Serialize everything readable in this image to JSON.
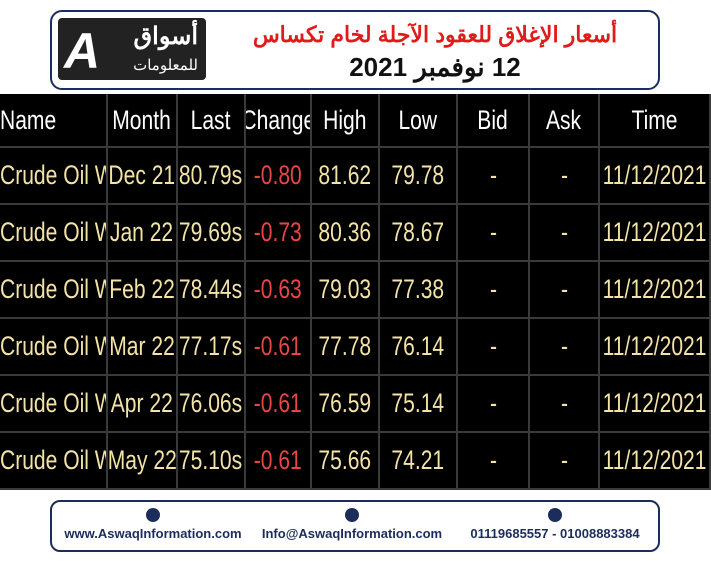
{
  "header": {
    "logo": {
      "main": "أسواق",
      "sub": "للمعلومات"
    },
    "title": "أسعار الإغلاق للعقود الآجلة لخام تكساس",
    "date": "12 نوفمبر 2021"
  },
  "table": {
    "columns": [
      "Name",
      "Month",
      "Last",
      "Change",
      "High",
      "Low",
      "Bid",
      "Ask",
      "Time"
    ],
    "rows": [
      [
        "Crude Oil WTI",
        "Dec 21",
        "80.79s",
        "-0.80",
        "81.62",
        "79.78",
        "-",
        "-",
        "11/12/2021"
      ],
      [
        "Crude Oil WTI",
        "Jan 22",
        "79.69s",
        "-0.73",
        "80.36",
        "78.67",
        "-",
        "-",
        "11/12/2021"
      ],
      [
        "Crude Oil WTI",
        "Feb 22",
        "78.44s",
        "-0.63",
        "79.03",
        "77.38",
        "-",
        "-",
        "11/12/2021"
      ],
      [
        "Crude Oil WTI",
        "Mar 22",
        "77.17s",
        "-0.61",
        "77.78",
        "76.14",
        "-",
        "-",
        "11/12/2021"
      ],
      [
        "Crude Oil WTI",
        "Apr 22",
        "76.06s",
        "-0.61",
        "76.59",
        "75.14",
        "-",
        "-",
        "11/12/2021"
      ],
      [
        "Crude Oil WTI",
        "May 22",
        "75.10s",
        "-0.61",
        "75.66",
        "74.21",
        "-",
        "-",
        "11/12/2021"
      ]
    ]
  },
  "footer": {
    "website": "www.AswaqInformation.com",
    "email": "Info@AswaqInformation.com",
    "phones": "01119685557 - 01008883384"
  }
}
